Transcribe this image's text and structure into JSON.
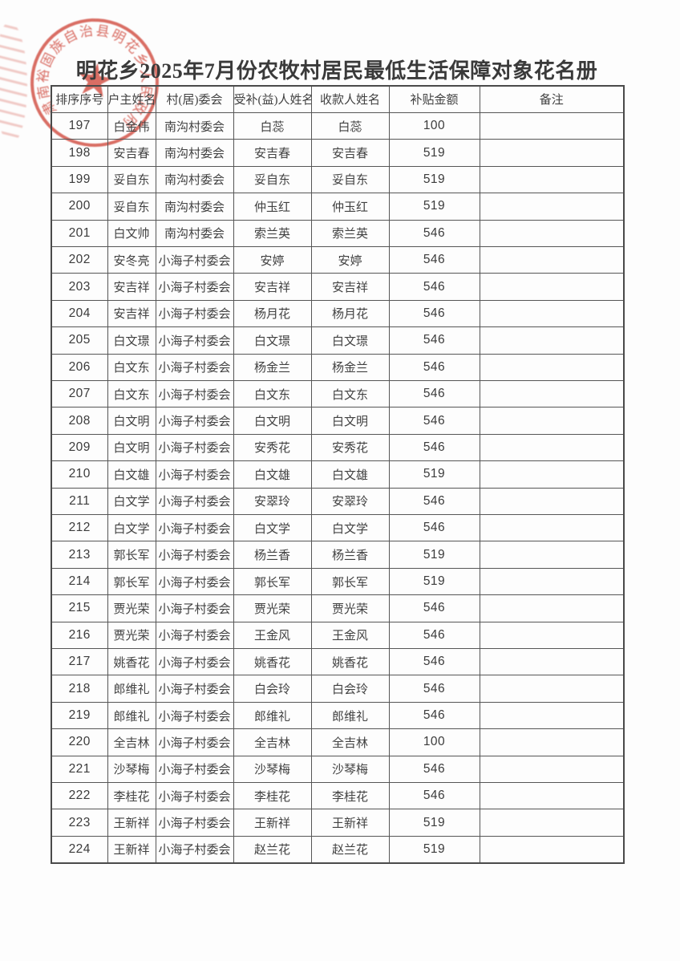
{
  "document": {
    "title": "明花乡2025年7月份农牧村居民最低生活保障对象花名册"
  },
  "seal": {
    "text": "肃南裕固族自治县明花乡人民政府",
    "star_glyph": "★",
    "color": "#cf463a"
  },
  "table": {
    "headers": [
      "排序序号",
      "户主姓名",
      "村(居)委会",
      "受补(益)人姓名",
      "收款人姓名",
      "补贴金额",
      "备注"
    ],
    "rows": [
      [
        "197",
        "白金伟",
        "南沟村委会",
        "白蕊",
        "白蕊",
        "100",
        ""
      ],
      [
        "198",
        "安吉春",
        "南沟村委会",
        "安吉春",
        "安吉春",
        "519",
        ""
      ],
      [
        "199",
        "妥自东",
        "南沟村委会",
        "妥自东",
        "妥自东",
        "519",
        ""
      ],
      [
        "200",
        "妥自东",
        "南沟村委会",
        "仲玉红",
        "仲玉红",
        "519",
        ""
      ],
      [
        "201",
        "白文帅",
        "南沟村委会",
        "索兰英",
        "索兰英",
        "546",
        ""
      ],
      [
        "202",
        "安冬亮",
        "小海子村委会",
        "安婷",
        "安婷",
        "546",
        ""
      ],
      [
        "203",
        "安吉祥",
        "小海子村委会",
        "安吉祥",
        "安吉祥",
        "546",
        ""
      ],
      [
        "204",
        "安吉祥",
        "小海子村委会",
        "杨月花",
        "杨月花",
        "546",
        ""
      ],
      [
        "205",
        "白文璟",
        "小海子村委会",
        "白文璟",
        "白文璟",
        "546",
        ""
      ],
      [
        "206",
        "白文东",
        "小海子村委会",
        "杨金兰",
        "杨金兰",
        "546",
        ""
      ],
      [
        "207",
        "白文东",
        "小海子村委会",
        "白文东",
        "白文东",
        "546",
        ""
      ],
      [
        "208",
        "白文明",
        "小海子村委会",
        "白文明",
        "白文明",
        "546",
        ""
      ],
      [
        "209",
        "白文明",
        "小海子村委会",
        "安秀花",
        "安秀花",
        "546",
        ""
      ],
      [
        "210",
        "白文雄",
        "小海子村委会",
        "白文雄",
        "白文雄",
        "519",
        ""
      ],
      [
        "211",
        "白文学",
        "小海子村委会",
        "安翠玲",
        "安翠玲",
        "546",
        ""
      ],
      [
        "212",
        "白文学",
        "小海子村委会",
        "白文学",
        "白文学",
        "546",
        ""
      ],
      [
        "213",
        "郭长军",
        "小海子村委会",
        "杨兰香",
        "杨兰香",
        "519",
        ""
      ],
      [
        "214",
        "郭长军",
        "小海子村委会",
        "郭长军",
        "郭长军",
        "519",
        ""
      ],
      [
        "215",
        "贾光荣",
        "小海子村委会",
        "贾光荣",
        "贾光荣",
        "546",
        ""
      ],
      [
        "216",
        "贾光荣",
        "小海子村委会",
        "王金风",
        "王金风",
        "546",
        ""
      ],
      [
        "217",
        "姚香花",
        "小海子村委会",
        "姚香花",
        "姚香花",
        "546",
        ""
      ],
      [
        "218",
        "郎维礼",
        "小海子村委会",
        "白会玲",
        "白会玲",
        "546",
        ""
      ],
      [
        "219",
        "郎维礼",
        "小海子村委会",
        "郎维礼",
        "郎维礼",
        "546",
        ""
      ],
      [
        "220",
        "全吉林",
        "小海子村委会",
        "全吉林",
        "全吉林",
        "100",
        ""
      ],
      [
        "221",
        "沙琴梅",
        "小海子村委会",
        "沙琴梅",
        "沙琴梅",
        "546",
        ""
      ],
      [
        "222",
        "李桂花",
        "小海子村委会",
        "李桂花",
        "李桂花",
        "546",
        ""
      ],
      [
        "223",
        "王新祥",
        "小海子村委会",
        "王新祥",
        "王新祥",
        "519",
        ""
      ],
      [
        "224",
        "王新祥",
        "小海子村委会",
        "赵兰花",
        "赵兰花",
        "519",
        ""
      ]
    ]
  }
}
